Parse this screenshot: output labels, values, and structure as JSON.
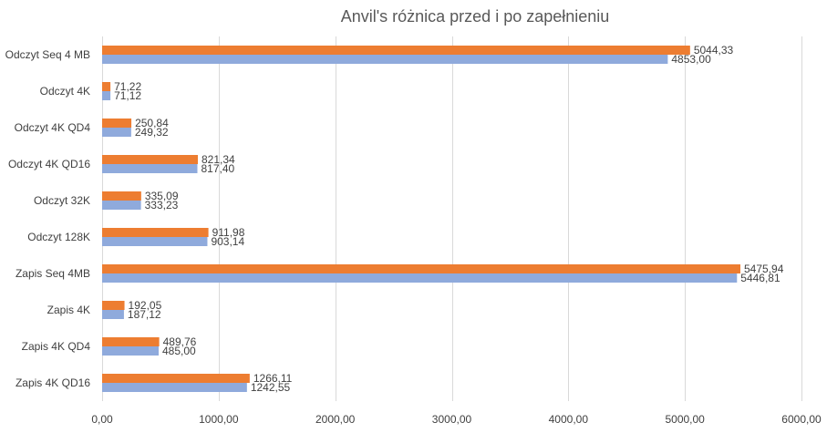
{
  "chart_data": {
    "type": "bar",
    "orientation": "horizontal",
    "title": "Anvil's różnica przed i po zapełnieniu",
    "categories": [
      "Odczyt Seq 4 MB",
      "Odczyt 4K",
      "Odczyt 4K QD4",
      "Odczyt 4K QD16",
      "Odczyt 32K",
      "Odczyt 128K",
      "Zapis Seq 4MB",
      "Zapis 4K",
      "Zapis 4K QD4",
      "Zapis 4K QD16"
    ],
    "series": [
      {
        "color": "#ed7d31",
        "values": [
          5044.33,
          71.22,
          250.84,
          821.34,
          335.09,
          911.98,
          5475.94,
          192.05,
          489.76,
          1266.11
        ],
        "labels": [
          "5044,33",
          "71,22",
          "250,84",
          "821,34",
          "335,09",
          "911,98",
          "5475,94",
          "192,05",
          "489,76",
          "1266,11"
        ]
      },
      {
        "color": "#8faadc",
        "values": [
          4853.0,
          71.12,
          249.32,
          817.4,
          333.23,
          903.14,
          5446.81,
          187.12,
          485.0,
          1242.55
        ],
        "labels": [
          "4853,00",
          "71,12",
          "249,32",
          "817,40",
          "333,23",
          "903,14",
          "5446,81",
          "187,12",
          "485,00",
          "1242,55"
        ]
      }
    ],
    "xlim": [
      0,
      6000
    ],
    "xticks": [
      0,
      1000,
      2000,
      3000,
      4000,
      5000,
      6000
    ],
    "xtick_labels": [
      "0,00",
      "1000,00",
      "2000,00",
      "3000,00",
      "4000,00",
      "5000,00",
      "6000,00"
    ],
    "grid": "vertical",
    "legend": "none"
  }
}
